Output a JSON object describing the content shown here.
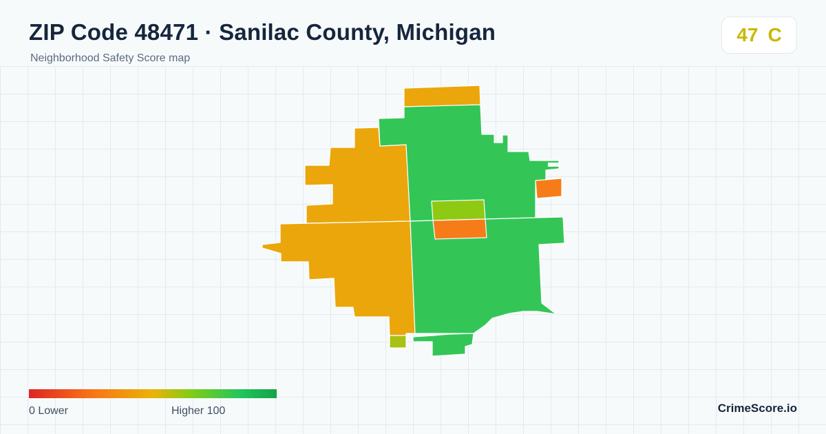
{
  "header": {
    "title": "ZIP Code 48471 · Sanilac County, Michigan",
    "subtitle": "Neighborhood Safety Score map"
  },
  "score_badge": {
    "score": "47",
    "grade": "C",
    "color": "#c9b800"
  },
  "legend": {
    "min_label": "0  Lower",
    "max_label": "Higher  100",
    "colors": [
      "#dc2626",
      "#f97316",
      "#eab308",
      "#84cc16",
      "#22c55e",
      "#16a34a"
    ]
  },
  "brand": "CrimeScore.io",
  "palette": {
    "grid_line": "#e3eaee",
    "background": "#f7fafb",
    "zone_amber": "#eba60b",
    "zone_green": "#33c657",
    "zone_lime": "#8ec914",
    "zone_orange": "#f57c19",
    "zone_yellow_green": "#a9c112"
  }
}
